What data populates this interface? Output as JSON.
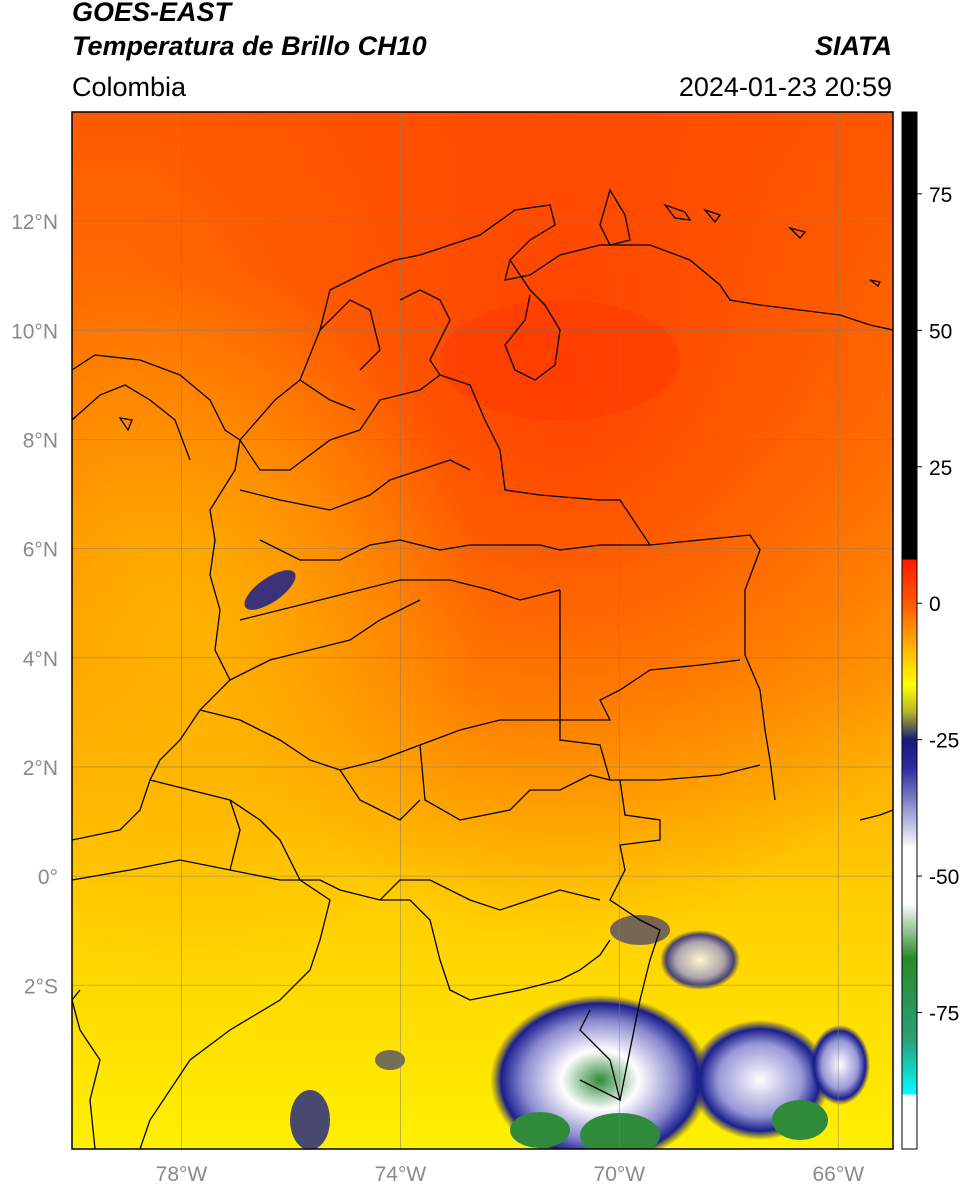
{
  "header": {
    "satellite": "GOES-EAST",
    "product": "Temperatura de Brillo CH10",
    "brand": "SIATA",
    "region": "Colombia",
    "datetime": "2024-01-23 20:59"
  },
  "map": {
    "lon_range": [
      -80,
      -65
    ],
    "lat_range": [
      -5,
      14
    ],
    "lat_ticks": [
      {
        "value": 12,
        "label": "12°N"
      },
      {
        "value": 10,
        "label": "10°N"
      },
      {
        "value": 8,
        "label": "8°N"
      },
      {
        "value": 6,
        "label": "6°N"
      },
      {
        "value": 4,
        "label": "4°N"
      },
      {
        "value": 2,
        "label": "2°N"
      },
      {
        "value": 0,
        "label": "0°"
      },
      {
        "value": -2,
        "label": "2°S"
      }
    ],
    "lon_ticks": [
      {
        "value": -78,
        "label": "78°W"
      },
      {
        "value": -74,
        "label": "74°W"
      },
      {
        "value": -70,
        "label": "70°W"
      },
      {
        "value": -66,
        "label": "66°W"
      }
    ],
    "grid": true,
    "colors": {
      "warm_north": "#ff4a00",
      "mid": "#ff9a00",
      "cool_south": "#ffe800",
      "cloud_blue": "#1a1f8c",
      "cloud_white": "#ffffff",
      "cloud_green": "#2f8a3a"
    }
  },
  "colorbar": {
    "range": [
      -100,
      90
    ],
    "ticks": [
      {
        "value": 75,
        "label": "75"
      },
      {
        "value": 50,
        "label": "50"
      },
      {
        "value": 25,
        "label": "25"
      },
      {
        "value": 0,
        "label": "0"
      },
      {
        "value": -25,
        "label": "-25"
      },
      {
        "value": -50,
        "label": "-50"
      },
      {
        "value": -75,
        "label": "-75"
      }
    ],
    "stops": [
      {
        "value": 90,
        "color": "#000000"
      },
      {
        "value": 8,
        "color": "#000000"
      },
      {
        "value": 8,
        "color": "#ff1a00"
      },
      {
        "value": 0,
        "color": "#ff5a00"
      },
      {
        "value": -10,
        "color": "#ffc800"
      },
      {
        "value": -15,
        "color": "#ffff00"
      },
      {
        "value": -20,
        "color": "#b5b52a"
      },
      {
        "value": -25,
        "color": "#1a1a7a"
      },
      {
        "value": -30,
        "color": "#2a2aa0"
      },
      {
        "value": -45,
        "color": "#ffffff"
      },
      {
        "value": -55,
        "color": "#ffffff"
      },
      {
        "value": -65,
        "color": "#2a8a2a"
      },
      {
        "value": -80,
        "color": "#2aa07a"
      },
      {
        "value": -90,
        "color": "#00ffff"
      },
      {
        "value": -90,
        "color": "#ffffff"
      },
      {
        "value": -100,
        "color": "#ffffff"
      }
    ]
  }
}
